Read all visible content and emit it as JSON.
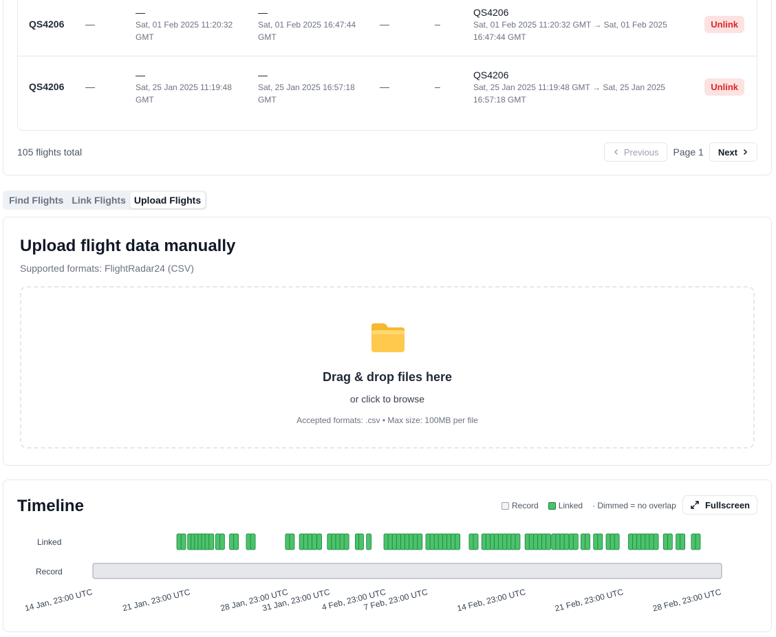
{
  "flights_table": {
    "rows": [
      {
        "flight": "QS4206",
        "col2": "—",
        "start_main": "—",
        "start_sub": "Sat, 01 Feb 2025 11:20:32 GMT",
        "end_main": "—",
        "end_sub": "Sat, 01 Feb 2025 16:47:44 GMT",
        "col5": "—",
        "col6": "–",
        "link_main": "QS4206",
        "link_sub": "Sat, 01 Feb 2025 11:20:32 GMT → Sat, 01 Feb 2025 16:47:44 GMT",
        "action": "Unlink"
      },
      {
        "flight": "QS4206",
        "col2": "—",
        "start_main": "—",
        "start_sub": "Sat, 25 Jan 2025 11:19:48 GMT",
        "end_main": "—",
        "end_sub": "Sat, 25 Jan 2025 16:57:18 GMT",
        "col5": "—",
        "col6": "–",
        "link_main": "QS4206",
        "link_sub": "Sat, 25 Jan 2025 11:19:48 GMT → Sat, 25 Jan 2025 16:57:18 GMT",
        "action": "Unlink"
      }
    ],
    "total": "105 flights total",
    "pagination": {
      "previous": "Previous",
      "page": "Page 1",
      "next": "Next"
    }
  },
  "tabs": [
    {
      "label": "Find Flights",
      "active": false
    },
    {
      "label": "Link Flights",
      "active": false
    },
    {
      "label": "Upload Flights",
      "active": true
    }
  ],
  "upload": {
    "title": "Upload flight data manually",
    "subtitle": "Supported formats: FlightRadar24 (CSV)",
    "icon": "folder-icon",
    "drop_title": "Drag & drop files here",
    "drop_sub": "or click to browse",
    "drop_note": "Accepted formats: .csv • Max size: 100MB per file"
  },
  "timeline": {
    "title": "Timeline",
    "legend": {
      "record": "Record",
      "linked": "Linked",
      "note": "· Dimmed = no overlap"
    },
    "fullscreen": "Fullscreen",
    "lanes": {
      "linked": "Linked",
      "record": "Record"
    },
    "colors": {
      "linked_fill": "#4cc26b",
      "linked_stroke": "#15803d",
      "record_fill": "#e5e7eb",
      "record_stroke": "#9ca3af"
    },
    "ticks": [
      {
        "label": "14 Jan, 23:00 UTC",
        "day": 0
      },
      {
        "label": "21 Jan, 23:00 UTC",
        "day": 7
      },
      {
        "label": "28 Jan, 23:00 UTC",
        "day": 14
      },
      {
        "label": "31 Jan, 23:00 UTC",
        "day": 17
      },
      {
        "label": "4 Feb, 23:00 UTC",
        "day": 21
      },
      {
        "label": "7 Feb, 23:00 UTC",
        "day": 24
      },
      {
        "label": "14 Feb, 23:00 UTC",
        "day": 31
      },
      {
        "label": "21 Feb, 23:00 UTC",
        "day": 38
      },
      {
        "label": "28 Feb, 23:00 UTC",
        "day": 45
      }
    ],
    "record_range": [
      0,
      45
    ],
    "linked_days": [
      6.18,
      6.48,
      6.95,
      7.2,
      7.45,
      7.7,
      7.95,
      8.2,
      8.48,
      8.95,
      9.25,
      9.95,
      10.25,
      11.15,
      11.45,
      13.95,
      14.25,
      14.95,
      15.25,
      15.55,
      15.85,
      16.2,
      16.95,
      17.25,
      17.55,
      17.85,
      18.15,
      18.95,
      19.2,
      19.75,
      21.0,
      21.3,
      21.6,
      21.9,
      22.2,
      22.5,
      22.8,
      23.1,
      23.4,
      24.0,
      24.3,
      24.6,
      24.9,
      25.2,
      25.5,
      25.8,
      26.1,
      27.1,
      27.4,
      28.0,
      28.3,
      28.6,
      28.9,
      29.2,
      29.5,
      29.8,
      30.1,
      30.4,
      31.1,
      31.4,
      31.7,
      32.0,
      32.3,
      32.6,
      33.0,
      33.3,
      33.6,
      33.9,
      34.25,
      34.55,
      35.1,
      35.4,
      36.0,
      36.3,
      36.9,
      37.2,
      37.5,
      38.5,
      38.8,
      39.1,
      39.4,
      39.7,
      40.0,
      40.3,
      41.0,
      41.3,
      41.9,
      42.2,
      43.0,
      43.3
    ]
  }
}
